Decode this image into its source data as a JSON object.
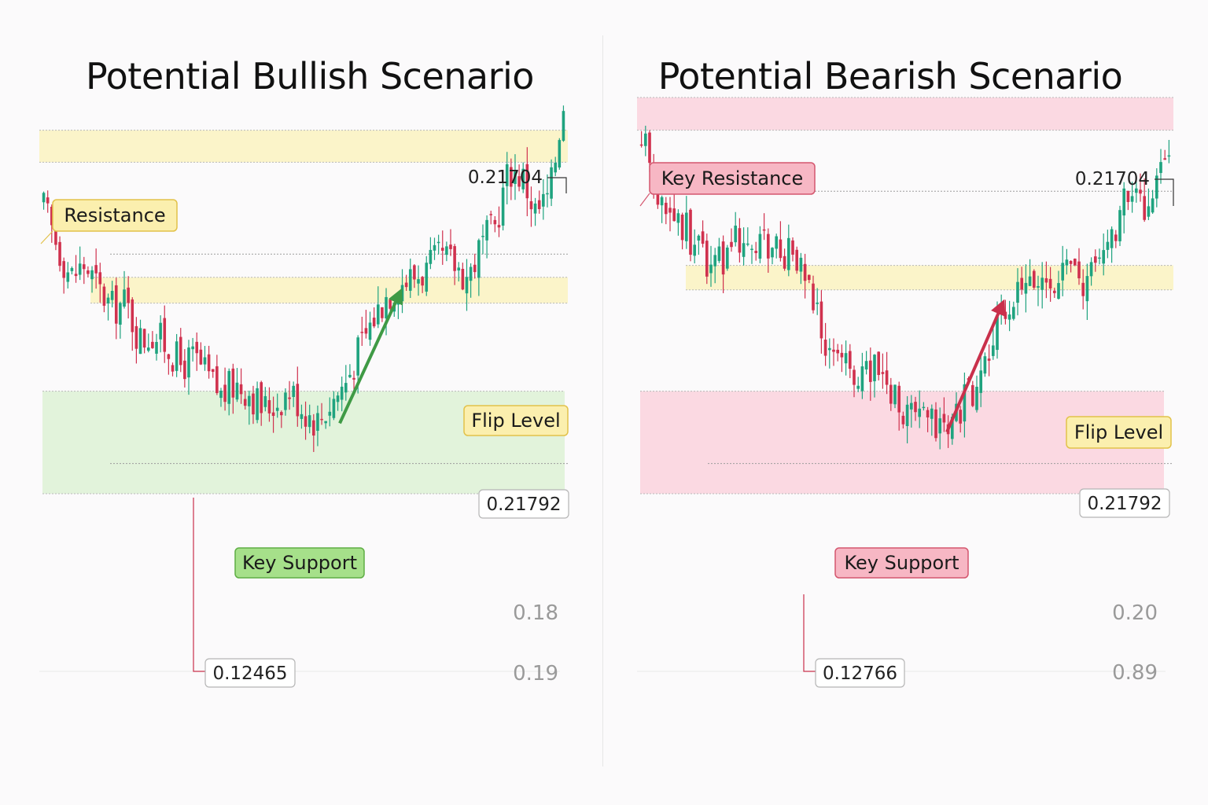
{
  "colors": {
    "up": "#1fa37f",
    "down": "#d0314e",
    "resistance_fill": "#fbf3c4",
    "flip_fill": "#fbf3c4",
    "support_fill_bull": "#dff2d8",
    "zone_fill_bear": "#fbd6df",
    "label_yellow_bg": "#fbefae",
    "label_yellow_border": "#e2c24a",
    "label_green_bg": "#a6e08a",
    "label_green_border": "#5fae45",
    "label_pink_bg": "#f7b7c4",
    "label_pink_border": "#d4566e",
    "arrow_bull": "#3f9a45",
    "arrow_bear": "#c9304b"
  },
  "chart_data": [
    {
      "type": "candlestick",
      "title": "Potential Bullish Scenario",
      "ylim": [
        0.1,
        0.22
      ],
      "peak_price": "0.21704",
      "low_price": "0.12465",
      "support_price_label": "0.21792",
      "axis_labels": [
        "0.18",
        "0.19"
      ],
      "zones": [
        {
          "name": "Resistance",
          "from": 0.1992,
          "to": 0.2043
        },
        {
          "name": "Flip Level",
          "from": 0.1768,
          "to": 0.1809
        },
        {
          "name": "Key Support",
          "from": 0.1465,
          "to": 0.1628
        }
      ],
      "levels": [
        0.1846,
        0.1513
      ],
      "path_points": [
        0.192,
        0.186,
        0.181,
        0.183,
        0.179,
        0.176,
        0.177,
        0.171,
        0.172,
        0.17,
        0.167,
        0.168,
        0.165,
        0.162,
        0.164,
        0.163,
        0.16,
        0.161,
        0.163,
        0.16,
        0.158,
        0.161,
        0.164,
        0.169,
        0.174,
        0.178,
        0.18,
        0.181,
        0.182,
        0.184,
        0.183,
        0.181,
        0.186,
        0.189,
        0.198,
        0.197,
        0.191,
        0.194,
        0.209
      ],
      "arrow": {
        "direction": "up",
        "from_price": 0.1577,
        "to_price": 0.1783
      },
      "legend": {
        "resistance": "Resistance",
        "flip": "Flip Level",
        "support": "Key Support"
      }
    },
    {
      "type": "candlestick",
      "title": "Potential Bearish Scenario",
      "ylim": [
        0.1,
        0.22
      ],
      "peak_price": "0.21704",
      "low_price": "0.12766",
      "support_price_label": "0.21792",
      "axis_labels": [
        "0.20",
        "0.89"
      ],
      "zones": [
        {
          "name": "Key Resistance",
          "from": 0.2043,
          "to": 0.2095
        },
        {
          "name": "Flip Level",
          "from": 0.1789,
          "to": 0.1828
        },
        {
          "name": "Key Support",
          "from": 0.1465,
          "to": 0.1628
        }
      ],
      "levels": [
        0.1946,
        0.1513
      ],
      "path_points": [
        0.203,
        0.196,
        0.191,
        0.189,
        0.186,
        0.182,
        0.184,
        0.188,
        0.185,
        0.186,
        0.185,
        0.184,
        0.179,
        0.172,
        0.169,
        0.166,
        0.165,
        0.167,
        0.163,
        0.16,
        0.158,
        0.157,
        0.156,
        0.16,
        0.164,
        0.168,
        0.174,
        0.177,
        0.179,
        0.18,
        0.181,
        0.182,
        0.179,
        0.184,
        0.188,
        0.194,
        0.192,
        0.195,
        0.202
      ],
      "arrow": {
        "direction": "up",
        "from_price": 0.1563,
        "to_price": 0.1765
      },
      "legend": {
        "resistance": "Key Resistance",
        "flip": "Flip Level",
        "support": "Key Support"
      }
    }
  ]
}
